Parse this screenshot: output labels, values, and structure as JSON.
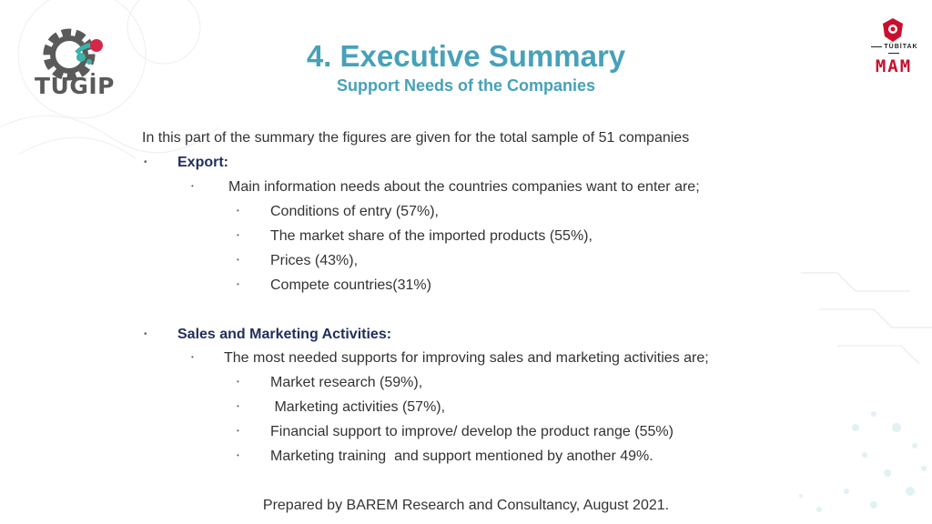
{
  "logos": {
    "left_name": "TÜGİP",
    "right_top": "TÜBİTAK",
    "right_bottom": "MAM"
  },
  "header": {
    "title": "4. Executive Summary",
    "subtitle": "Support Needs of the Companies"
  },
  "intro": "In this  part of the summary the figures are given for the total sample of 51 companies",
  "sections": [
    {
      "heading": "Export:",
      "sub": "Main information needs about the countries companies want to enter are;",
      "items": [
        "Conditions of entry (57%),",
        "The market share of the imported products  (55%),",
        "Prices (43%),",
        "Compete countries(31%)"
      ]
    },
    {
      "heading": "Sales and Marketing Activities:",
      "sub": "The most needed supports for improving sales and marketing activities are;",
      "items": [
        "Market research (59%),",
        " Marketing activities (57%),",
        "Financial support to improve/ develop the product range (55%)",
        "Marketing training  and support mentioned by another 49%."
      ]
    }
  ],
  "footer": "Prepared by BAREM Research and Consultancy, August 2021.",
  "colors": {
    "title": "#47a1b9",
    "heading": "#1f2f5a",
    "brand_red": "#c8102e"
  }
}
